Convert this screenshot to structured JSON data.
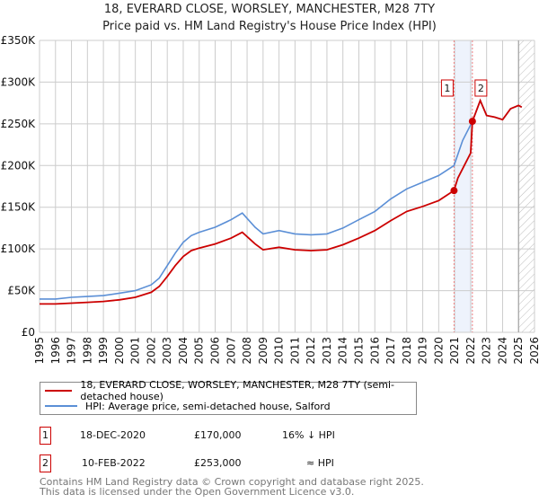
{
  "chart_data": {
    "type": "line",
    "title": "18, EVERARD CLOSE, WORSLEY, MANCHESTER, M28 7TY",
    "subtitle": "Price paid vs. HM Land Registry's House Price Index (HPI)",
    "xlim": [
      1995,
      2026
    ],
    "ylim": [
      0,
      350000
    ],
    "yticks": [
      {
        "v": 0,
        "l": "£0"
      },
      {
        "v": 50000,
        "l": "£50K"
      },
      {
        "v": 100000,
        "l": "£100K"
      },
      {
        "v": 150000,
        "l": "£150K"
      },
      {
        "v": 200000,
        "l": "£200K"
      },
      {
        "v": 250000,
        "l": "£250K"
      },
      {
        "v": 300000,
        "l": "£300K"
      },
      {
        "v": 350000,
        "l": "£350K"
      }
    ],
    "xticks": [
      "1995",
      "1996",
      "1997",
      "1998",
      "1999",
      "2000",
      "2001",
      "2002",
      "2003",
      "2004",
      "2005",
      "2006",
      "2007",
      "2008",
      "2009",
      "2010",
      "2011",
      "2012",
      "2013",
      "2014",
      "2015",
      "2016",
      "2017",
      "2018",
      "2019",
      "2020",
      "2021",
      "2022",
      "2023",
      "2024",
      "2025",
      "2026"
    ],
    "series": [
      {
        "name": "18, EVERARD CLOSE, WORSLEY, MANCHESTER, M28 7TY (semi-detached house)",
        "color": "#cc0000",
        "x": [
          1995,
          1996,
          1997,
          1998,
          1999,
          2000,
          2001,
          2002,
          2002.5,
          2003,
          2003.5,
          2004,
          2004.5,
          2005,
          2006,
          2007,
          2007.7,
          2008.5,
          2009,
          2010,
          2011,
          2012,
          2013,
          2014,
          2015,
          2016,
          2017,
          2018,
          2019,
          2020,
          2020.96,
          2021.2,
          2021.6,
          2022,
          2022.11,
          2022.6,
          2023,
          2023.5,
          2024,
          2024.5,
          2025,
          2025.2
        ],
        "y": [
          34000,
          34000,
          35000,
          36000,
          37000,
          39000,
          42000,
          48000,
          55000,
          67000,
          80000,
          91000,
          98000,
          101000,
          106000,
          113000,
          120000,
          106000,
          99000,
          102000,
          99000,
          98000,
          99000,
          105000,
          113000,
          122000,
          134000,
          145000,
          151000,
          158000,
          170000,
          185000,
          200000,
          215000,
          253000,
          278000,
          260000,
          258000,
          255000,
          268000,
          272000,
          270000
        ]
      },
      {
        "name": "HPI: Average price, semi-detached house, Salford",
        "color": "#5b8fd6",
        "x": [
          1995,
          1996,
          1997,
          1998,
          1999,
          2000,
          2001,
          2002,
          2002.5,
          2003,
          2003.5,
          2004,
          2004.5,
          2005,
          2006,
          2007,
          2007.7,
          2008.5,
          2009,
          2010,
          2011,
          2012,
          2013,
          2014,
          2015,
          2016,
          2017,
          2018,
          2019,
          2020,
          2020.96,
          2021.5,
          2022.11,
          2022.6,
          2023,
          2023.5,
          2024,
          2024.5,
          2025,
          2025.2
        ],
        "y": [
          40000,
          40000,
          42000,
          43000,
          44000,
          47000,
          50000,
          57000,
          65000,
          80000,
          95000,
          108000,
          116000,
          120000,
          126000,
          135000,
          143000,
          126000,
          118000,
          122000,
          118000,
          117000,
          118000,
          125000,
          135000,
          145000,
          160000,
          172000,
          180000,
          188000,
          200000,
          230000,
          253000,
          278000,
          260000,
          258000,
          255000,
          268000,
          272000,
          270000
        ]
      }
    ],
    "sales": [
      {
        "id": "1",
        "x": 2020.96,
        "price": 170000,
        "date": "18-DEC-2020",
        "price_label": "£170,000",
        "hpi_rel": "16% ↓ HPI"
      },
      {
        "id": "2",
        "x": 2022.11,
        "price": 253000,
        "date": "10-FEB-2022",
        "price_label": "£253,000",
        "hpi_rel": "≈ HPI"
      }
    ],
    "forecast_from": 2025.0,
    "grid": true
  },
  "legend": {
    "red": "18, EVERARD CLOSE, WORSLEY, MANCHESTER, M28 7TY (semi-detached house)",
    "blue": "HPI: Average price, semi-detached house, Salford"
  },
  "footer": {
    "line1": "Contains HM Land Registry data © Crown copyright and database right 2025.",
    "line2": "This data is licensed under the Open Government Licence v3.0."
  }
}
